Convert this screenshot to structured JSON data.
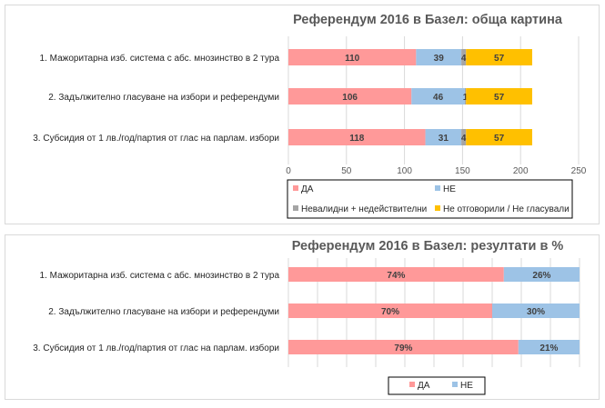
{
  "chart_data": [
    {
      "type": "bar",
      "orientation": "horizontal",
      "stacked": true,
      "title": "Референдум 2016 в Базел: обща картина",
      "categories": [
        "1. Мажоритарна изб. система с абс. мнозинство в 2 тура",
        "2. Задължително гласуване на избори и референдуми",
        "3. Субсидия от 1 лв./год/партия от глас на парлам. избори"
      ],
      "series": [
        {
          "name": "ДА",
          "color": "#ff9999",
          "values": [
            110,
            106,
            118
          ]
        },
        {
          "name": "НЕ",
          "color": "#9dc3e6",
          "values": [
            39,
            46,
            31
          ]
        },
        {
          "name": "Невалидни + недействителни",
          "color": "#a5a5a5",
          "values": [
            4,
            1,
            4
          ]
        },
        {
          "name": "Не отговорили / Не гласували",
          "color": "#ffc000",
          "values": [
            57,
            57,
            57
          ]
        }
      ],
      "xlim": [
        0,
        250
      ],
      "ticks": [
        "0",
        "50",
        "100",
        "150",
        "200",
        "250"
      ],
      "grid": true,
      "legend": "bottom"
    },
    {
      "type": "bar",
      "orientation": "horizontal",
      "stacked": true,
      "percent": true,
      "title": "Референдум 2016 в Базел: резултати в %",
      "categories": [
        "1. Мажоритарна изб. система с абс. мнозинство в 2 тура",
        "2. Задължително гласуване на избори и референдуми",
        "3. Субсидия от 1 лв./год/партия от глас на парлам. избори"
      ],
      "series": [
        {
          "name": "ДА",
          "color": "#ff9999",
          "values": [
            74,
            70,
            79
          ]
        },
        {
          "name": "НЕ",
          "color": "#9dc3e6",
          "values": [
            26,
            30,
            21
          ]
        }
      ],
      "xlim": [
        0,
        100
      ],
      "grid": true,
      "legend": "bottom"
    }
  ]
}
